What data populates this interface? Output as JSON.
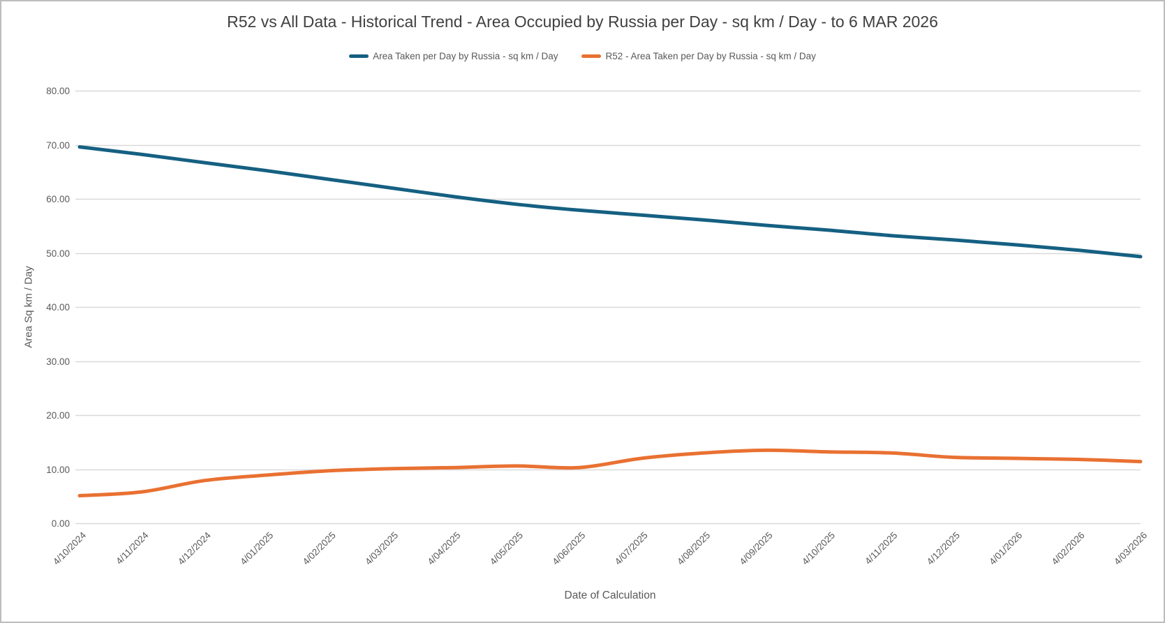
{
  "chart_data": {
    "type": "line",
    "title": "R52 vs All Data - Historical Trend - Area Occupied by Russia per Day - sq km / Day - to 6 MAR 2026",
    "xlabel": "Date of Calculation",
    "ylabel": "Area Sq km / Day",
    "ylim": [
      0,
      80
    ],
    "y_tick_values": [
      80,
      70,
      60,
      50,
      40,
      30,
      20,
      10,
      0
    ],
    "y_tick_labels": [
      "80.00",
      "70.00",
      "60.00",
      "50.00",
      "40.00",
      "30.00",
      "20.00",
      "10.00",
      "0.00"
    ],
    "grid": "horizontal",
    "gridline_color": "#d9d9d9",
    "axis_text_color": "#595959",
    "title_color": "#404040",
    "legend_position": "top-center",
    "categories": [
      "4/10/2024",
      "4/11/2024",
      "4/12/2024",
      "4/01/2025",
      "4/02/2025",
      "4/03/2025",
      "4/04/2025",
      "4/05/2025",
      "4/06/2025",
      "4/07/2025",
      "4/08/2025",
      "4/09/2025",
      "4/10/2025",
      "4/11/2025",
      "4/12/2025",
      "4/01/2026",
      "4/02/2026",
      "4/03/2026"
    ],
    "series": [
      {
        "name": "Area Taken per Day by Russia - sq km / Day",
        "color": "#156082",
        "values": [
          69.6,
          68.2,
          66.7,
          65.2,
          63.6,
          62.0,
          60.4,
          59.0,
          57.9,
          57.0,
          56.1,
          55.1,
          54.2,
          53.2,
          52.4,
          51.5,
          50.5,
          49.3
        ]
      },
      {
        "name": "R52 - Area Taken per Day by Russia - sq km / Day",
        "color": "#E97132",
        "values": [
          5.1,
          5.8,
          7.9,
          8.9,
          9.7,
          10.1,
          10.3,
          10.6,
          10.3,
          12.0,
          13.0,
          13.5,
          13.2,
          13.0,
          12.2,
          12.0,
          11.8,
          11.4
        ]
      }
    ]
  }
}
